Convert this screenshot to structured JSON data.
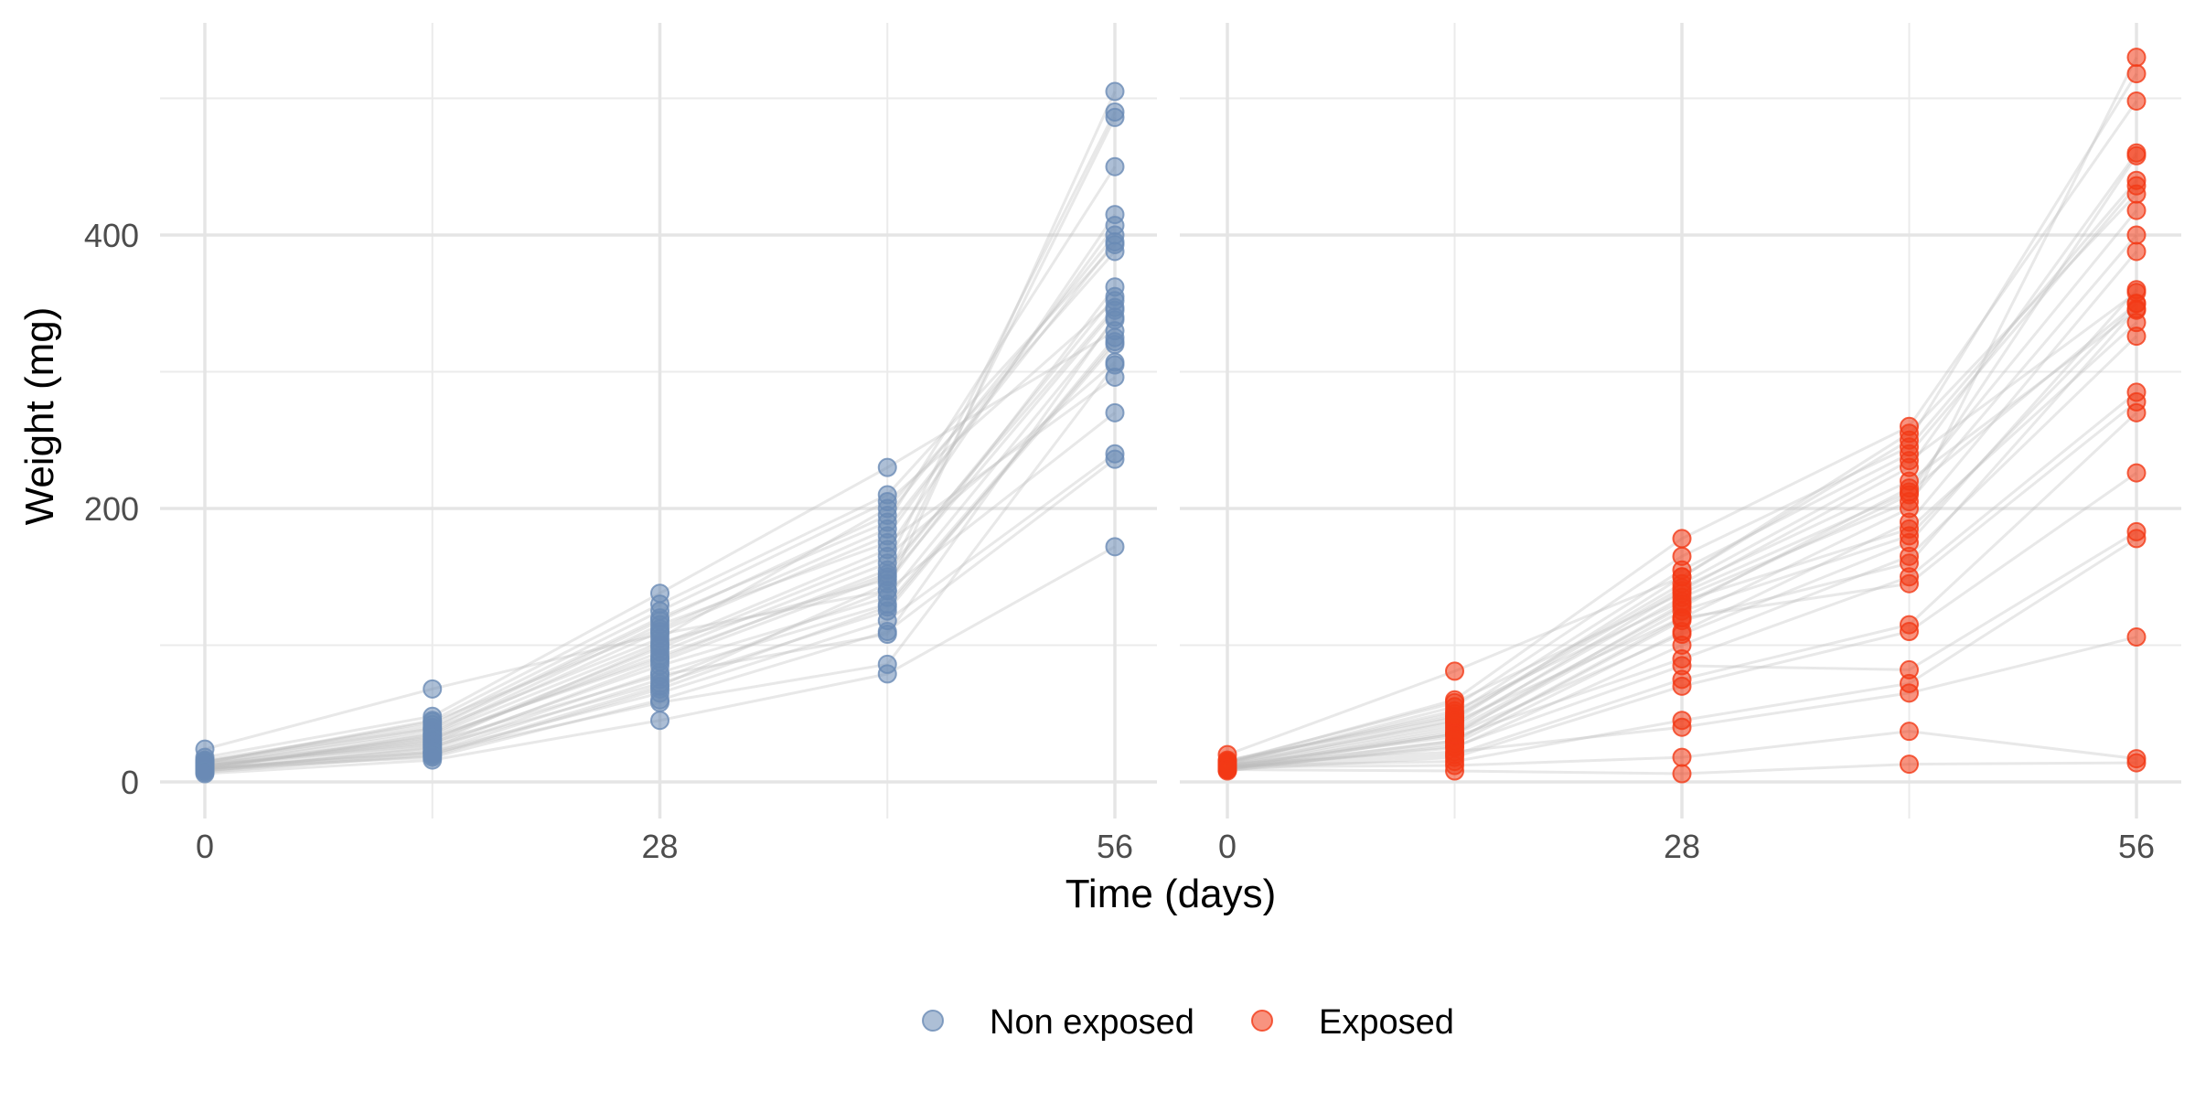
{
  "chart_data": {
    "type": "scatter",
    "xlabel": "Time (days)",
    "ylabel": "Weight (mg)",
    "x_ticks": [
      0,
      28,
      56
    ],
    "y_ticks": [
      0,
      200,
      400
    ],
    "xlim": [
      0,
      56
    ],
    "ylim": [
      0,
      520
    ],
    "timepoints": [
      0,
      14,
      28,
      42,
      56
    ],
    "grid": true,
    "legend_position": "bottom",
    "colors": {
      "Non exposed": "#6a8bb5",
      "Exposed": "#f33a16",
      "trajectory": "#bdbdbd"
    },
    "panels": [
      {
        "group": "Non exposed",
        "series": [
          {
            "values": [
              10,
              22,
              75,
              140,
              505
            ]
          },
          {
            "values": [
              12,
              30,
              95,
              160,
              490
            ]
          },
          {
            "values": [
              8,
              25,
              88,
              150,
              486
            ]
          },
          {
            "values": [
              15,
              40,
              120,
              190,
              450
            ]
          },
          {
            "values": [
              11,
              28,
              100,
              170,
              415
            ]
          },
          {
            "values": [
              9,
              35,
              110,
              180,
              407
            ]
          },
          {
            "values": [
              14,
              45,
              130,
              210,
              393
            ]
          },
          {
            "values": [
              13,
              38,
              105,
              200,
              388
            ]
          },
          {
            "values": [
              7,
              20,
              70,
              145,
              362
            ]
          },
          {
            "values": [
              16,
              42,
              125,
              205,
              352
            ]
          },
          {
            "values": [
              10,
              33,
              90,
              155,
              347
            ]
          },
          {
            "values": [
              12,
              27,
              85,
              135,
              338
            ]
          },
          {
            "values": [
              18,
              48,
              138,
              230,
              330
            ]
          },
          {
            "values": [
              9,
              24,
              80,
              130,
              322
            ]
          },
          {
            "values": [
              11,
              31,
              98,
              165,
              307
            ]
          },
          {
            "values": [
              13,
              36,
              115,
              175,
              296
            ]
          },
          {
            "values": [
              24,
              68,
              108,
              140,
              270
            ]
          },
          {
            "values": [
              8,
              22,
              65,
              118,
              240
            ]
          },
          {
            "values": [
              10,
              18,
              60,
              110,
              236
            ]
          },
          {
            "values": [
              6,
              16,
              45,
              79,
              172
            ]
          },
          {
            "values": [
              14,
              44,
              112,
              185,
              395
            ]
          },
          {
            "values": [
              12,
              29,
              78,
              108,
              340
            ]
          },
          {
            "values": [
              9,
              26,
              72,
              125,
              325
            ]
          },
          {
            "values": [
              11,
              34,
              102,
              148,
              345
            ]
          },
          {
            "values": [
              15,
              39,
              118,
              195,
              400
            ]
          },
          {
            "values": [
              10,
              21,
              58,
              86,
              305
            ]
          },
          {
            "values": [
              13,
              32,
              92,
              152,
              355
            ]
          },
          {
            "values": [
              8,
              19,
              68,
              128,
              320
            ]
          }
        ]
      },
      {
        "group": "Exposed",
        "series": [
          {
            "values": [
              10,
              30,
              120,
              200,
              530
            ]
          },
          {
            "values": [
              12,
              45,
              150,
              250,
              518
            ]
          },
          {
            "values": [
              14,
              60,
              178,
              260,
              498
            ]
          },
          {
            "values": [
              11,
              40,
              140,
              230,
              460
            ]
          },
          {
            "values": [
              9,
              35,
              130,
              210,
              458
            ]
          },
          {
            "values": [
              13,
              55,
              165,
              245,
              440
            ]
          },
          {
            "values": [
              15,
              50,
              155,
              240,
              436
            ]
          },
          {
            "values": [
              10,
              38,
              128,
              215,
              418
            ]
          },
          {
            "values": [
              12,
              42,
              135,
              205,
              400
            ]
          },
          {
            "values": [
              8,
              28,
              110,
              190,
              388
            ]
          },
          {
            "values": [
              16,
              48,
              145,
              235,
              358
            ]
          },
          {
            "values": [
              11,
              36,
              125,
              180,
              350
            ]
          },
          {
            "values": [
              9,
              30,
              118,
              160,
              346
            ]
          },
          {
            "values": [
              14,
              52,
              132,
              185,
              336
            ]
          },
          {
            "values": [
              10,
              25,
              100,
              165,
              326
            ]
          },
          {
            "values": [
              12,
              33,
              90,
              150,
              285
            ]
          },
          {
            "values": [
              13,
              44,
              120,
              145,
              278
            ]
          },
          {
            "values": [
              11,
              20,
              75,
              115,
              270
            ]
          },
          {
            "values": [
              9,
              18,
              70,
              110,
              226
            ]
          },
          {
            "values": [
              15,
              58,
              138,
              212,
              350
            ]
          },
          {
            "values": [
              10,
              26,
              85,
              82,
              183
            ]
          },
          {
            "values": [
              12,
              15,
              45,
              72,
              178
            ]
          },
          {
            "values": [
              13,
              22,
              40,
              65,
              106
            ]
          },
          {
            "values": [
              11,
              12,
              18,
              37,
              17
            ]
          },
          {
            "values": [
              9,
              8,
              6,
              13,
              14
            ]
          },
          {
            "values": [
              20,
              81,
              150,
              255,
              430
            ]
          },
          {
            "values": [
              14,
              47,
              142,
              220,
              345
            ]
          },
          {
            "values": [
              10,
              35,
              108,
              175,
              360
            ]
          }
        ]
      }
    ],
    "legend": [
      "Non exposed",
      "Exposed"
    ]
  }
}
